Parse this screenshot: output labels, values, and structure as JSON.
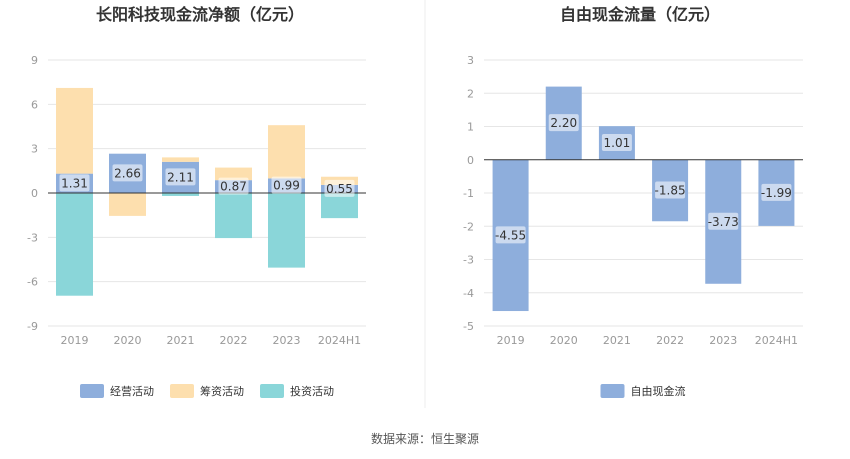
{
  "source": "数据来源：恒生聚源",
  "chart_data": [
    {
      "type": "bar",
      "stacked": true,
      "title": "长阳科技现金流净额（亿元）",
      "categories": [
        "2019",
        "2020",
        "2021",
        "2022",
        "2023",
        "2024H1"
      ],
      "ylim": [
        -9,
        9
      ],
      "yticks": [
        9,
        6,
        3,
        0,
        -3,
        -6,
        -9
      ],
      "series": [
        {
          "name": "经营活动",
          "color": "#8eaedc",
          "values": [
            1.31,
            2.66,
            2.11,
            0.87,
            0.99,
            0.55
          ],
          "labeled": true
        },
        {
          "name": "筹资活动",
          "color": "#fddfae",
          "values": [
            5.8,
            -1.55,
            0.3,
            0.85,
            3.6,
            0.55
          ],
          "labeled": false
        },
        {
          "name": "投资活动",
          "color": "#8ad6d9",
          "values": [
            -6.95,
            0,
            -0.2,
            -3.05,
            -5.05,
            -1.7
          ],
          "labeled": false
        }
      ],
      "legend": "bottom"
    },
    {
      "type": "bar",
      "title": "自由现金流量（亿元）",
      "categories": [
        "2019",
        "2020",
        "2021",
        "2022",
        "2023",
        "2024H1"
      ],
      "ylim": [
        -5,
        3
      ],
      "yticks": [
        3,
        2,
        1,
        0,
        -1,
        -2,
        -3,
        -4,
        -5
      ],
      "series": [
        {
          "name": "自由现金流",
          "color": "#8eaedc",
          "values": [
            -4.55,
            2.2,
            1.01,
            -1.85,
            -3.73,
            -1.99
          ],
          "labeled": true
        }
      ],
      "legend": "bottom"
    }
  ]
}
